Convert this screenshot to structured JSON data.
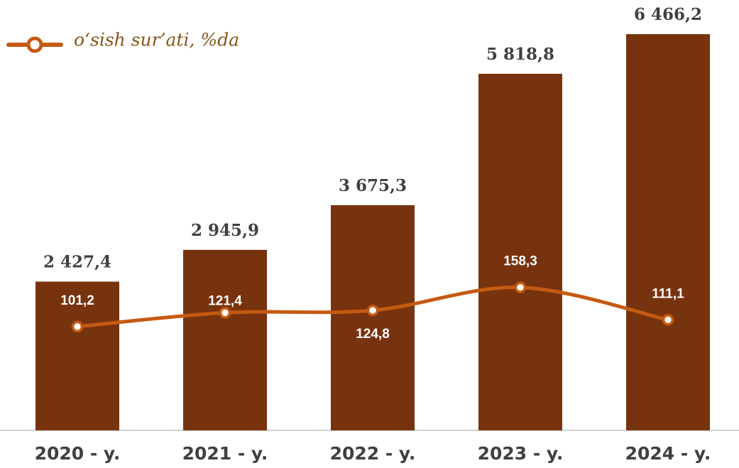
{
  "chart_data": {
    "type": "bar",
    "categories": [
      "2020 - y.",
      "2021 - y.",
      "2022 - y.",
      "2023 - y.",
      "2024 - y."
    ],
    "series": [
      {
        "type": "bar",
        "color": "#77330e",
        "values": [
          2427.4,
          2945.9,
          3675.3,
          5818.8,
          6466.2
        ],
        "value_labels": [
          "2 427,4",
          "2 945,9",
          "3 675,3",
          "5 818,8",
          "6 466,2"
        ]
      },
      {
        "type": "line",
        "name": "o‘sish sur’ati,  %da",
        "color": "#c55a11",
        "axis": "y2",
        "smooth": true,
        "values": [
          101.2,
          121.4,
          124.8,
          158.3,
          111.1
        ],
        "value_labels": [
          "101,2",
          "121,4",
          "124,8",
          "158,3",
          "111,1"
        ]
      }
    ],
    "ylim": [
      0,
      7000
    ],
    "y2lim": [
      -50,
      575
    ],
    "legend": "top-left"
  }
}
